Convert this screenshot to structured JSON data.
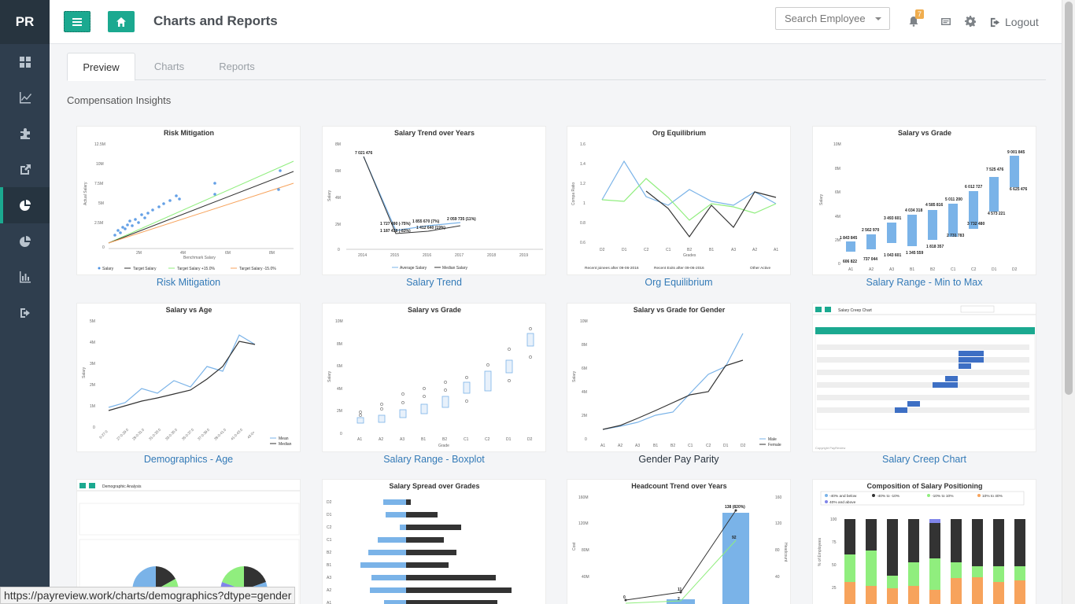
{
  "brand": "PR",
  "header": {
    "title": "Charts and Reports",
    "search_placeholder": "Search Employee",
    "notification_count": "7",
    "logout_label": "Logout"
  },
  "sidebar": {
    "items": [
      {
        "icon": "dashboard-icon"
      },
      {
        "icon": "line-chart-icon"
      },
      {
        "icon": "puzzle-icon"
      },
      {
        "icon": "external-link-icon"
      },
      {
        "icon": "pie-chart-icon"
      },
      {
        "icon": "pie-chart-alt-icon"
      },
      {
        "icon": "bar-chart-icon"
      },
      {
        "icon": "sign-out-icon"
      }
    ]
  },
  "tabs": [
    "Preview",
    "Charts",
    "Reports"
  ],
  "section_title": "Compensation Insights",
  "cards": [
    {
      "title": "Risk Mitigation",
      "caption": "Risk Mitigation"
    },
    {
      "title": "Salary Trend over Years",
      "caption": "Salary Trend"
    },
    {
      "title": "Org Equilibrium",
      "caption": "Org Equilibrium"
    },
    {
      "title": "Salary vs Grade",
      "caption": "Salary Range - Min to Max"
    },
    {
      "title": "Salary vs Age",
      "caption": "Demographics - Age"
    },
    {
      "title": "Salary vs Grade",
      "caption": "Salary Range - Boxplot"
    },
    {
      "title": "Salary vs Grade for Gender",
      "caption": "Gender Pay Parity"
    },
    {
      "title": "Salary Creep Chart",
      "caption": "Salary Creep Chart"
    },
    {
      "title": "Demographic Analysis",
      "caption": ""
    },
    {
      "title": "Salary Spread over Grades",
      "caption": ""
    },
    {
      "title": "Headcount Trend over Years",
      "caption": ""
    },
    {
      "title": "Composition of Salary Positioning",
      "caption": ""
    }
  ],
  "status_url": "https://payreview.work/charts/demographics?dtype=gender",
  "colors": {
    "accent": "#1ba990",
    "sidebar": "#2f3e4e",
    "link": "#337ab7",
    "series_blue": "#7ab3e8",
    "series_dark": "#333",
    "series_green": "#90ee7e",
    "series_orange": "#f7a35c"
  }
}
